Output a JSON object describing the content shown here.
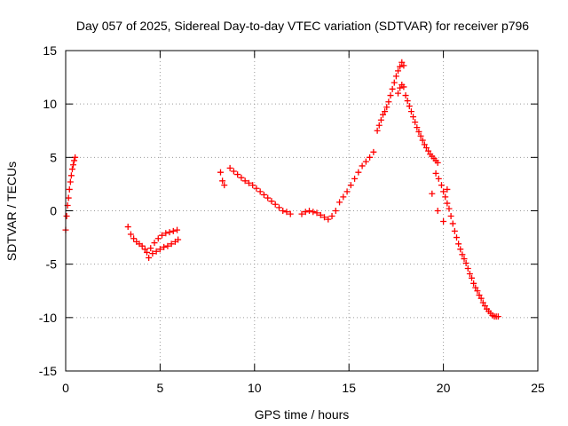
{
  "chart_data": {
    "type": "scatter",
    "title": "Day 057 of 2025, Sidereal Day-to-day VTEC variation (SDTVAR) for receiver p796",
    "xlabel": "GPS time / hours",
    "ylabel": "SDTVAR / TECUs",
    "xlim": [
      0,
      25
    ],
    "ylim": [
      -15,
      15
    ],
    "xticks": [
      0,
      5,
      10,
      15,
      20,
      25
    ],
    "yticks": [
      -15,
      -10,
      -5,
      0,
      5,
      10,
      15
    ],
    "grid": true,
    "marker": "+",
    "color": "#ff0000",
    "series": [
      {
        "name": "SDTVAR",
        "x": [
          0.0,
          0.05,
          0.1,
          0.15,
          0.2,
          0.25,
          0.3,
          0.35,
          0.4,
          0.45,
          0.5,
          3.3,
          3.45,
          3.6,
          3.75,
          3.9,
          4.05,
          4.2,
          4.3,
          4.4,
          4.5,
          4.7,
          4.9,
          5.1,
          5.3,
          5.5,
          5.7,
          5.9,
          4.6,
          4.8,
          5.0,
          5.2,
          5.4,
          5.6,
          5.8,
          5.95,
          8.2,
          8.3,
          8.4,
          8.7,
          8.9,
          9.1,
          9.3,
          9.5,
          9.7,
          9.9,
          10.1,
          10.3,
          10.5,
          10.7,
          10.9,
          11.1,
          11.3,
          11.5,
          11.7,
          11.9,
          12.5,
          12.7,
          12.9,
          13.1,
          13.3,
          13.5,
          13.7,
          13.9,
          14.1,
          14.3,
          14.5,
          14.7,
          14.9,
          15.1,
          15.3,
          15.5,
          15.7,
          15.9,
          16.1,
          16.3,
          16.5,
          16.6,
          16.7,
          16.8,
          16.9,
          17.0,
          17.1,
          17.2,
          17.3,
          17.4,
          17.5,
          17.6,
          17.7,
          17.8,
          17.9,
          17.6,
          17.7,
          17.8,
          17.9,
          18.0,
          18.1,
          18.2,
          18.3,
          18.4,
          18.5,
          18.6,
          18.7,
          18.8,
          18.9,
          19.0,
          19.1,
          19.2,
          19.3,
          19.4,
          19.5,
          19.6,
          19.7,
          19.6,
          19.75,
          19.9,
          20.0,
          20.1,
          20.2,
          20.3,
          20.4,
          20.5,
          20.6,
          20.7,
          20.8,
          20.9,
          21.0,
          21.1,
          21.2,
          21.3,
          21.4,
          21.5,
          21.6,
          21.7,
          21.8,
          21.9,
          22.0,
          22.1,
          22.2,
          22.3,
          22.4,
          22.5,
          22.6,
          22.7,
          22.8,
          22.9,
          19.4,
          19.7,
          20.0,
          20.2
        ],
        "y": [
          -1.8,
          -0.5,
          0.5,
          1.2,
          2.0,
          2.7,
          3.3,
          3.9,
          4.3,
          4.7,
          5.0,
          -1.5,
          -2.2,
          -2.6,
          -2.9,
          -3.1,
          -3.3,
          -3.6,
          -3.9,
          -4.4,
          -3.5,
          -3.0,
          -2.6,
          -2.3,
          -2.1,
          -2.0,
          -1.9,
          -1.8,
          -4.0,
          -3.8,
          -3.6,
          -3.4,
          -3.3,
          -3.1,
          -2.9,
          -2.7,
          3.6,
          2.8,
          2.4,
          4.0,
          3.7,
          3.4,
          3.1,
          2.8,
          2.6,
          2.4,
          2.1,
          1.8,
          1.5,
          1.2,
          0.9,
          0.6,
          0.3,
          0.0,
          -0.1,
          -0.3,
          -0.3,
          -0.1,
          0.0,
          -0.1,
          -0.2,
          -0.4,
          -0.6,
          -0.8,
          -0.5,
          0.0,
          0.8,
          1.3,
          1.8,
          2.4,
          3.0,
          3.6,
          4.2,
          4.6,
          5.0,
          5.5,
          7.5,
          8.0,
          8.5,
          9.0,
          9.3,
          9.7,
          10.2,
          10.8,
          11.4,
          12.0,
          12.6,
          13.1,
          13.5,
          13.9,
          13.6,
          11.0,
          11.5,
          11.8,
          11.6,
          10.8,
          10.3,
          9.8,
          9.3,
          8.8,
          8.3,
          7.8,
          7.4,
          7.0,
          6.6,
          6.2,
          5.9,
          5.6,
          5.3,
          5.1,
          4.9,
          4.7,
          4.5,
          3.5,
          3.0,
          2.4,
          1.8,
          1.3,
          0.7,
          0.2,
          -0.5,
          -1.2,
          -1.9,
          -2.5,
          -3.1,
          -3.6,
          -4.1,
          -4.5,
          -4.9,
          -5.4,
          -5.9,
          -6.3,
          -6.8,
          -7.2,
          -7.5,
          -7.9,
          -8.2,
          -8.6,
          -8.9,
          -9.2,
          -9.4,
          -9.6,
          -9.8,
          -9.9,
          -9.9,
          -9.9,
          1.6,
          0.0,
          -1.0,
          2.0
        ]
      }
    ]
  }
}
